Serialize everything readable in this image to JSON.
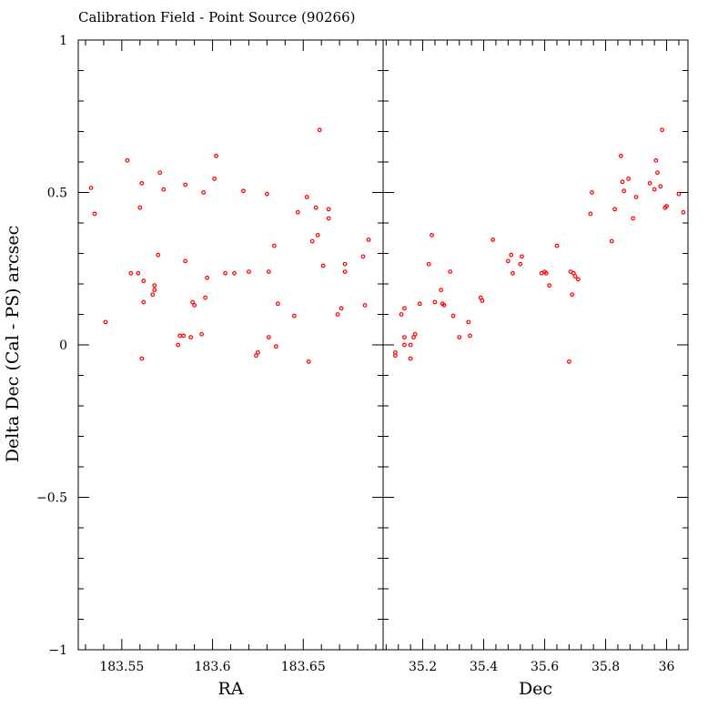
{
  "title": "Calibration Field - Point Source (90266)",
  "ylabel": "Delta Dec (Cal - PS) arcsec",
  "point_color": "#ff0000",
  "chart_data": [
    {
      "type": "scatter",
      "panel": "left",
      "xlabel": "RA",
      "ylabel": "Delta Dec (Cal - PS) arcsec",
      "xlim": [
        183.526,
        183.694
      ],
      "ylim": [
        -1,
        1
      ],
      "xticks": [
        183.55,
        183.6,
        183.65
      ],
      "xtick_labels": [
        "183.55",
        "183.6",
        "183.65"
      ],
      "yticks": [
        -1,
        -0.5,
        0,
        0.5,
        1
      ],
      "ytick_labels": [
        "−1",
        "−0.5",
        "0",
        "0.5",
        "1"
      ],
      "grid": false,
      "points": [
        [
          183.533,
          0.515
        ],
        [
          183.535,
          0.43
        ],
        [
          183.541,
          0.075
        ],
        [
          183.553,
          0.605
        ],
        [
          183.555,
          0.235
        ],
        [
          183.559,
          0.235
        ],
        [
          183.56,
          0.45
        ],
        [
          183.561,
          0.53
        ],
        [
          183.562,
          0.21
        ],
        [
          183.562,
          0.14
        ],
        [
          183.561,
          -0.045
        ],
        [
          183.567,
          0.165
        ],
        [
          183.568,
          0.195
        ],
        [
          183.568,
          0.18
        ],
        [
          183.57,
          0.295
        ],
        [
          183.571,
          0.565
        ],
        [
          183.573,
          0.51
        ],
        [
          183.581,
          0.0
        ],
        [
          183.582,
          0.03
        ],
        [
          183.584,
          0.03
        ],
        [
          183.585,
          0.275
        ],
        [
          183.585,
          0.525
        ],
        [
          183.588,
          0.025
        ],
        [
          183.589,
          0.14
        ],
        [
          183.59,
          0.13
        ],
        [
          183.594,
          0.035
        ],
        [
          183.595,
          0.5
        ],
        [
          183.596,
          0.155
        ],
        [
          183.597,
          0.22
        ],
        [
          183.601,
          0.545
        ],
        [
          183.602,
          0.62
        ],
        [
          183.607,
          0.235
        ],
        [
          183.612,
          0.235
        ],
        [
          183.617,
          0.505
        ],
        [
          183.62,
          0.24
        ],
        [
          183.624,
          -0.035
        ],
        [
          183.625,
          -0.025
        ],
        [
          183.63,
          0.495
        ],
        [
          183.631,
          0.025
        ],
        [
          183.631,
          0.24
        ],
        [
          183.634,
          0.325
        ],
        [
          183.635,
          -0.005
        ],
        [
          183.636,
          0.135
        ],
        [
          183.645,
          0.095
        ],
        [
          183.647,
          0.435
        ],
        [
          183.652,
          0.485
        ],
        [
          183.653,
          -0.055
        ],
        [
          183.655,
          0.34
        ],
        [
          183.657,
          0.45
        ],
        [
          183.658,
          0.36
        ],
        [
          183.659,
          0.705
        ],
        [
          183.661,
          0.26
        ],
        [
          183.664,
          0.445
        ],
        [
          183.664,
          0.415
        ],
        [
          183.669,
          0.1
        ],
        [
          183.671,
          0.12
        ],
        [
          183.673,
          0.24
        ],
        [
          183.673,
          0.265
        ],
        [
          183.683,
          0.29
        ],
        [
          183.684,
          0.13
        ],
        [
          183.686,
          0.345
        ]
      ]
    },
    {
      "type": "scatter",
      "panel": "right",
      "xlabel": "Dec",
      "ylabel": "Delta Dec (Cal - PS) arcsec",
      "xlim": [
        35.07,
        36.07
      ],
      "ylim": [
        -1,
        1
      ],
      "xticks": [
        35.2,
        35.4,
        35.6,
        35.8,
        36.0
      ],
      "xtick_labels": [
        "35.2",
        "35.4",
        "35.6",
        "35.8",
        "36"
      ],
      "yticks": [
        -1,
        -0.5,
        0,
        0.5,
        1
      ],
      "grid": false,
      "points": [
        [
          35.11,
          -0.035
        ],
        [
          35.11,
          -0.025
        ],
        [
          35.13,
          0.1
        ],
        [
          35.14,
          0.0
        ],
        [
          35.14,
          0.025
        ],
        [
          35.14,
          0.12
        ],
        [
          35.16,
          -0.045
        ],
        [
          35.16,
          0.0
        ],
        [
          35.17,
          0.025
        ],
        [
          35.175,
          0.035
        ],
        [
          35.19,
          0.135
        ],
        [
          35.22,
          0.265
        ],
        [
          35.23,
          0.36
        ],
        [
          35.24,
          0.14
        ],
        [
          35.26,
          0.18
        ],
        [
          35.265,
          0.135
        ],
        [
          35.27,
          0.13
        ],
        [
          35.29,
          0.24
        ],
        [
          35.3,
          0.095
        ],
        [
          35.32,
          0.025
        ],
        [
          35.35,
          0.075
        ],
        [
          35.355,
          0.03
        ],
        [
          35.39,
          0.155
        ],
        [
          35.395,
          0.145
        ],
        [
          35.43,
          0.345
        ],
        [
          35.48,
          0.275
        ],
        [
          35.49,
          0.295
        ],
        [
          35.495,
          0.235
        ],
        [
          35.52,
          0.265
        ],
        [
          35.525,
          0.29
        ],
        [
          35.59,
          0.235
        ],
        [
          35.6,
          0.24
        ],
        [
          35.605,
          0.235
        ],
        [
          35.615,
          0.195
        ],
        [
          35.64,
          0.325
        ],
        [
          35.68,
          -0.055
        ],
        [
          35.685,
          0.24
        ],
        [
          35.69,
          0.165
        ],
        [
          35.695,
          0.235
        ],
        [
          35.7,
          0.225
        ],
        [
          35.71,
          0.215
        ],
        [
          35.75,
          0.43
        ],
        [
          35.755,
          0.5
        ],
        [
          35.82,
          0.34
        ],
        [
          35.83,
          0.445
        ],
        [
          35.85,
          0.62
        ],
        [
          35.855,
          0.535
        ],
        [
          35.86,
          0.505
        ],
        [
          35.875,
          0.545
        ],
        [
          35.89,
          0.415
        ],
        [
          35.9,
          0.485
        ],
        [
          35.945,
          0.53
        ],
        [
          35.96,
          0.51
        ],
        [
          35.965,
          0.605
        ],
        [
          35.97,
          0.565
        ],
        [
          35.98,
          0.52
        ],
        [
          35.985,
          0.705
        ],
        [
          35.995,
          0.45
        ],
        [
          36.0,
          0.455
        ],
        [
          36.04,
          0.495
        ],
        [
          36.055,
          0.435
        ]
      ]
    }
  ]
}
